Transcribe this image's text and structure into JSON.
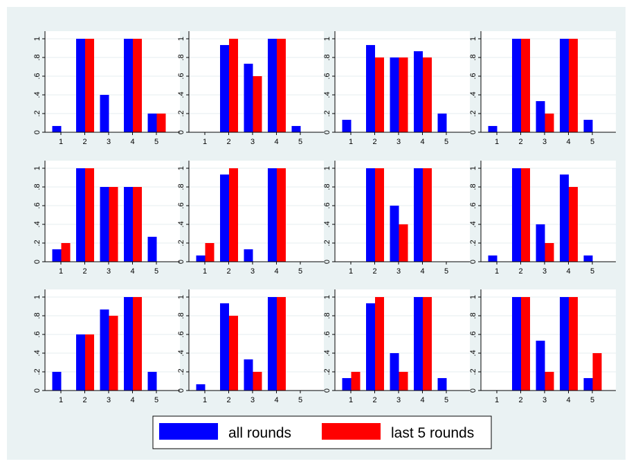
{
  "chart_data": {
    "type": "bar",
    "layout": "3 rows x 4 columns small multiples",
    "background_color": "#eaf2f3",
    "plot_background_color": "#ffffff",
    "grid": true,
    "legend_placement": "bottom-center",
    "categories": [
      "1",
      "2",
      "3",
      "4",
      "5"
    ],
    "ylim": [
      0,
      1.1
    ],
    "yticks": [
      {
        "value": 0,
        "label": "0"
      },
      {
        "value": 0.2,
        "label": ".2"
      },
      {
        "value": 0.4,
        "label": ".4"
      },
      {
        "value": 0.6,
        "label": ".6"
      },
      {
        "value": 0.8,
        "label": ".8"
      },
      {
        "value": 1,
        "label": "1"
      }
    ],
    "series_styles": [
      {
        "name": "all rounds",
        "color": "#0000ff"
      },
      {
        "name": "last 5 rounds",
        "color": "#ff0000"
      }
    ],
    "panels": [
      {
        "series": [
          {
            "name": "all rounds",
            "values": [
              0.067,
              1,
              0.4,
              1,
              0.2
            ]
          },
          {
            "name": "last 5 rounds",
            "values": [
              0,
              1,
              0,
              1,
              0.2
            ]
          }
        ]
      },
      {
        "series": [
          {
            "name": "all rounds",
            "values": [
              0,
              0.933,
              0.733,
              1,
              0.067
            ]
          },
          {
            "name": "last 5 rounds",
            "values": [
              0,
              1,
              0.6,
              1,
              0
            ]
          }
        ]
      },
      {
        "series": [
          {
            "name": "all rounds",
            "values": [
              0.133,
              0.933,
              0.8,
              0.867,
              0.2
            ]
          },
          {
            "name": "last 5 rounds",
            "values": [
              0,
              0.8,
              0.8,
              0.8,
              0
            ]
          }
        ]
      },
      {
        "series": [
          {
            "name": "all rounds",
            "values": [
              0.067,
              1,
              0.333,
              1,
              0.133
            ]
          },
          {
            "name": "last 5 rounds",
            "values": [
              0,
              1,
              0.2,
              1,
              0
            ]
          }
        ]
      },
      {
        "series": [
          {
            "name": "all rounds",
            "values": [
              0.133,
              1,
              0.8,
              0.8,
              0.267
            ]
          },
          {
            "name": "last 5 rounds",
            "values": [
              0.2,
              1,
              0.8,
              0.8,
              0
            ]
          }
        ]
      },
      {
        "series": [
          {
            "name": "all rounds",
            "values": [
              0.067,
              0.933,
              0.133,
              1,
              0
            ]
          },
          {
            "name": "last 5 rounds",
            "values": [
              0.2,
              1,
              0,
              1,
              0
            ]
          }
        ]
      },
      {
        "series": [
          {
            "name": "all rounds",
            "values": [
              0,
              1,
              0.6,
              1,
              0
            ]
          },
          {
            "name": "last 5 rounds",
            "values": [
              0,
              1,
              0.4,
              1,
              0
            ]
          }
        ]
      },
      {
        "series": [
          {
            "name": "all rounds",
            "values": [
              0.067,
              1,
              0.4,
              0.933,
              0.067
            ]
          },
          {
            "name": "last 5 rounds",
            "values": [
              0,
              1,
              0.2,
              0.8,
              0
            ]
          }
        ]
      },
      {
        "series": [
          {
            "name": "all rounds",
            "values": [
              0.2,
              0.6,
              0.867,
              1,
              0.2
            ]
          },
          {
            "name": "last 5 rounds",
            "values": [
              0,
              0.6,
              0.8,
              1,
              0
            ]
          }
        ]
      },
      {
        "series": [
          {
            "name": "all rounds",
            "values": [
              0.067,
              0.933,
              0.333,
              1,
              0
            ]
          },
          {
            "name": "last 5 rounds",
            "values": [
              0,
              0.8,
              0.2,
              1,
              0
            ]
          }
        ]
      },
      {
        "series": [
          {
            "name": "all rounds",
            "values": [
              0.133,
              0.933,
              0.4,
              1,
              0.133
            ]
          },
          {
            "name": "last 5 rounds",
            "values": [
              0.2,
              1,
              0.2,
              1,
              0
            ]
          }
        ]
      },
      {
        "series": [
          {
            "name": "all rounds",
            "values": [
              0,
              1,
              0.533,
              1,
              0.133
            ]
          },
          {
            "name": "last 5 rounds",
            "values": [
              0,
              1,
              0.2,
              1,
              0.4
            ]
          }
        ]
      }
    ]
  },
  "legend": {
    "items": [
      {
        "label": "all rounds",
        "color": "#0000ff"
      },
      {
        "label": "last 5 rounds",
        "color": "#ff0000"
      }
    ]
  }
}
